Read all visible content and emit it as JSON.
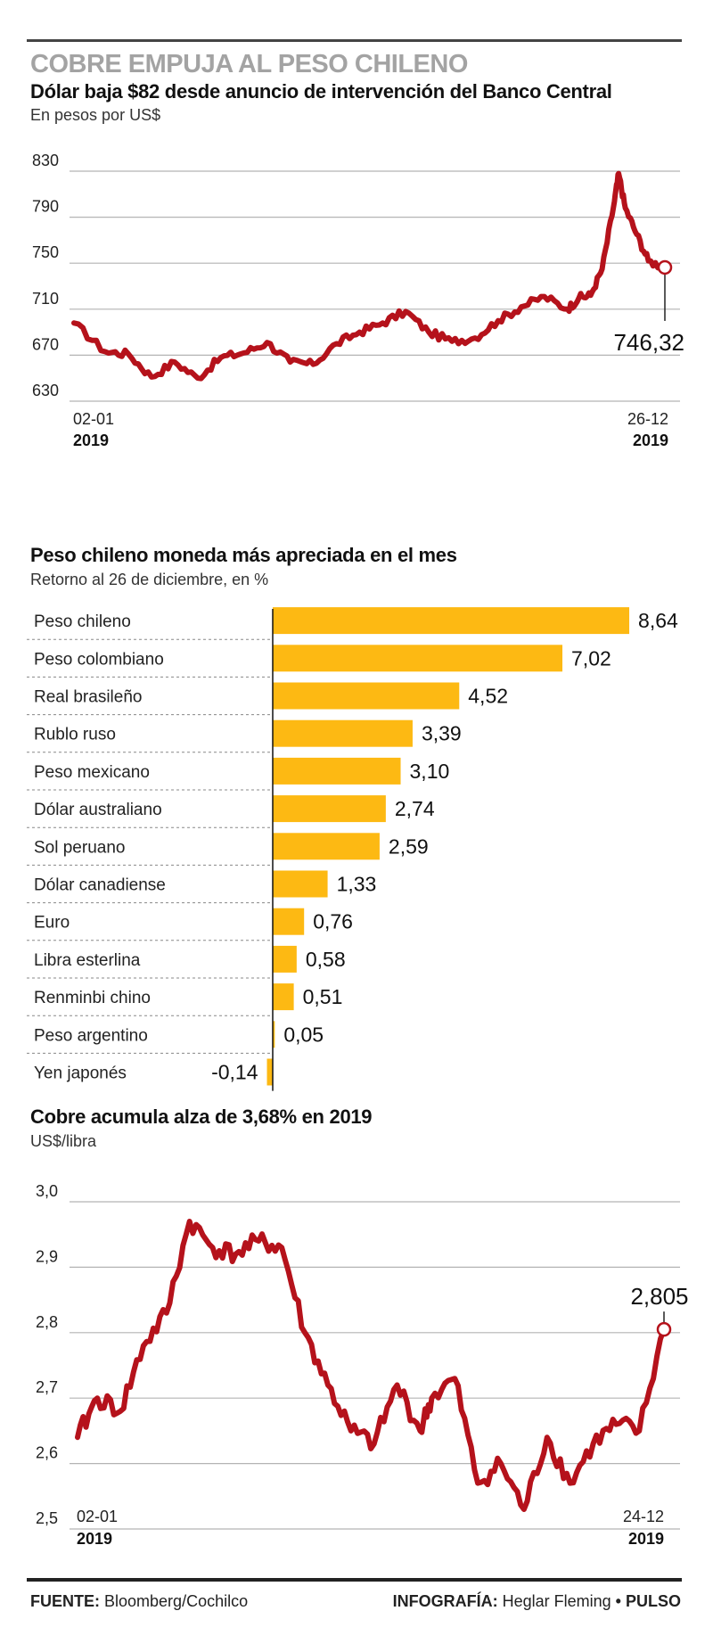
{
  "title": "COBRE EMPUJA AL PESO CHILENO",
  "charts": {
    "dollar": {
      "title": "Dólar baja $82 desde anuncio de intervención del Banco Central",
      "subtitle": "En pesos por US$",
      "x_start_date": "02-01",
      "x_start_year": "2019",
      "x_end_date": "26-12",
      "x_end_year": "2019",
      "last_value_label": "746,32"
    },
    "currencies": {
      "title": "Peso chileno moneda más apreciada en el mes",
      "subtitle": "Retorno al 26 de  diciembre, en %"
    },
    "copper": {
      "title": "Cobre acumula alza de 3,68% en 2019",
      "subtitle": "US$/libra",
      "x_start_date": "02-01",
      "x_start_year": "2019",
      "x_end_date": "24-12",
      "x_end_year": "2019",
      "last_value_label": "2,805"
    }
  },
  "footer": {
    "source_label": "FUENTE:",
    "source_text": "Bloomberg/Cochilco",
    "credit_label": "INFOGRAFÍA:",
    "credit_text": "Heglar Fleming",
    "credit_sep": "•",
    "publication": "PULSO"
  },
  "colors": {
    "line": "#b5121b",
    "bar": "#fdb913",
    "grid": "#b4b4b4",
    "title_gray": "#a3a3a3"
  },
  "chart_data": [
    {
      "type": "line",
      "yticks": [
        630,
        670,
        710,
        750,
        790,
        830
      ],
      "yticklabels": [
        "630",
        "670",
        "710",
        "750",
        "790",
        "830"
      ],
      "ylim": [
        630,
        835
      ],
      "x": [
        "2019-01-02",
        "2019-01-21",
        "2019-02-04",
        "2019-02-18",
        "2019-03-04",
        "2019-03-18",
        "2019-04-01",
        "2019-04-15",
        "2019-04-29",
        "2019-05-13",
        "2019-05-27",
        "2019-06-10",
        "2019-06-24",
        "2019-07-08",
        "2019-07-22",
        "2019-08-05",
        "2019-08-19",
        "2019-09-02",
        "2019-09-16",
        "2019-09-30",
        "2019-10-14",
        "2019-10-28",
        "2019-11-04",
        "2019-11-11",
        "2019-11-18",
        "2019-11-25",
        "2019-11-28",
        "2019-12-02",
        "2019-12-09",
        "2019-12-16",
        "2019-12-26"
      ],
      "y": [
        698,
        673,
        671,
        651,
        664,
        650,
        668,
        672,
        681,
        664,
        662,
        680,
        690,
        698,
        708,
        690,
        682,
        685,
        700,
        712,
        721,
        710,
        720,
        722,
        745,
        800,
        828,
        798,
        775,
        752,
        746.32
      ],
      "grid": true
    },
    {
      "type": "bar",
      "orientation": "horizontal",
      "categories": [
        "Peso chileno",
        "Peso colombiano",
        "Real brasileño",
        "Rublo ruso",
        "Peso mexicano",
        "Dólar australiano",
        "Sol peruano",
        "Dólar canadiense",
        "Euro",
        "Libra esterlina",
        "Renminbi chino",
        "Peso argentino",
        "Yen japonés"
      ],
      "values": [
        8.64,
        7.02,
        4.52,
        3.39,
        3.1,
        2.74,
        2.59,
        1.33,
        0.76,
        0.58,
        0.51,
        0.05,
        -0.14
      ],
      "value_labels": [
        "8,64",
        "7,02",
        "4,52",
        "3,39",
        "3,10",
        "2,74",
        "2,59",
        "1,33",
        "0,76",
        "0,58",
        "0,51",
        "0,05",
        "-0,14"
      ]
    },
    {
      "type": "line",
      "yticks": [
        2.5,
        2.6,
        2.7,
        2.8,
        2.9,
        3.0
      ],
      "yticklabels": [
        "2,5",
        "2,6",
        "2,7",
        "2,8",
        "2,9",
        "3,0"
      ],
      "ylim": [
        2.5,
        3.0
      ],
      "x": [
        "2019-01-02",
        "2019-01-14",
        "2019-01-28",
        "2019-02-11",
        "2019-02-25",
        "2019-03-11",
        "2019-03-25",
        "2019-04-08",
        "2019-04-22",
        "2019-05-06",
        "2019-05-20",
        "2019-06-03",
        "2019-06-17",
        "2019-07-01",
        "2019-07-15",
        "2019-07-29",
        "2019-08-05",
        "2019-08-19",
        "2019-09-02",
        "2019-09-16",
        "2019-09-30",
        "2019-10-14",
        "2019-10-28",
        "2019-11-11",
        "2019-11-25",
        "2019-12-09",
        "2019-12-24"
      ],
      "y": [
        2.64,
        2.7,
        2.68,
        2.78,
        2.83,
        2.97,
        2.93,
        2.92,
        2.94,
        2.93,
        2.8,
        2.72,
        2.65,
        2.63,
        2.72,
        2.65,
        2.7,
        2.73,
        2.57,
        2.6,
        2.53,
        2.64,
        2.57,
        2.63,
        2.66,
        2.65,
        2.805
      ],
      "grid": true
    }
  ]
}
